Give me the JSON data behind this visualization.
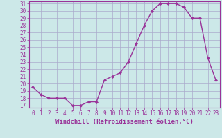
{
  "hours": [
    0,
    1,
    2,
    3,
    4,
    5,
    6,
    7,
    8,
    9,
    10,
    11,
    12,
    13,
    14,
    15,
    16,
    17,
    18,
    19,
    20,
    21,
    22,
    23
  ],
  "values": [
    19.5,
    18.5,
    18.0,
    18.0,
    18.0,
    17.0,
    17.0,
    17.5,
    17.5,
    20.5,
    21.0,
    21.5,
    23.0,
    25.5,
    28.0,
    30.0,
    31.0,
    31.0,
    31.0,
    30.5,
    29.0,
    29.0,
    23.5,
    20.5
  ],
  "line_color": "#993399",
  "marker": "D",
  "marker_size": 2.0,
  "linewidth": 1.0,
  "bg_color": "#cce8e8",
  "plot_bg_color": "#cce8e8",
  "grid_color": "#aaaacc",
  "xlabel": "Windchill (Refroidissement éolien,°C)",
  "xlabel_fontsize": 6.5,
  "ytick_min": 17,
  "ytick_max": 31,
  "ytick_step": 1,
  "xtick_labels": [
    "0",
    "1",
    "2",
    "3",
    "4",
    "5",
    "6",
    "7",
    "8",
    "9",
    "10",
    "11",
    "12",
    "13",
    "14",
    "15",
    "16",
    "17",
    "18",
    "19",
    "20",
    "21",
    "22",
    "23"
  ],
  "tick_fontsize": 5.5,
  "tick_color": "#993399",
  "spine_color": "#993399"
}
